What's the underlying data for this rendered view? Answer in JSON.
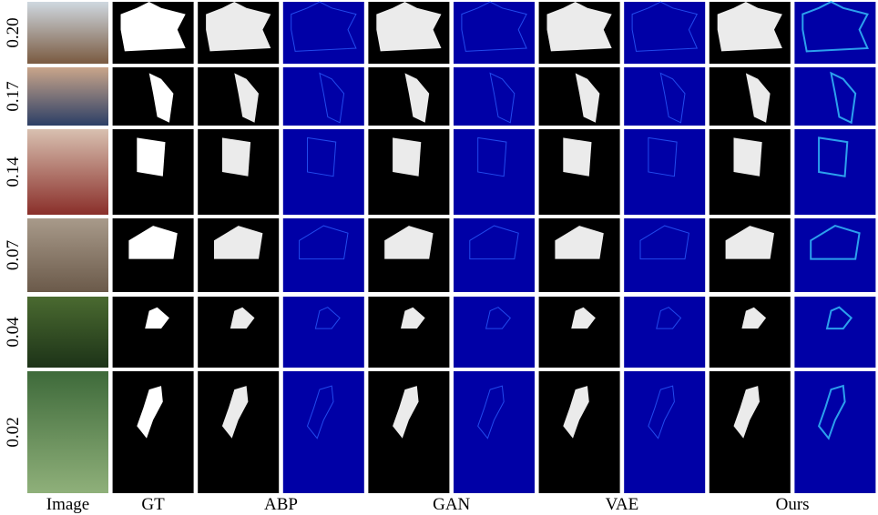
{
  "rows": [
    {
      "label": "0.20"
    },
    {
      "label": "0.17"
    },
    {
      "label": "0.14"
    },
    {
      "label": "0.07"
    },
    {
      "label": "0.04"
    },
    {
      "label": "0.02"
    }
  ],
  "columns": [
    "Image",
    "GT",
    "ABP",
    "GAN",
    "VAE",
    "Ours"
  ]
}
